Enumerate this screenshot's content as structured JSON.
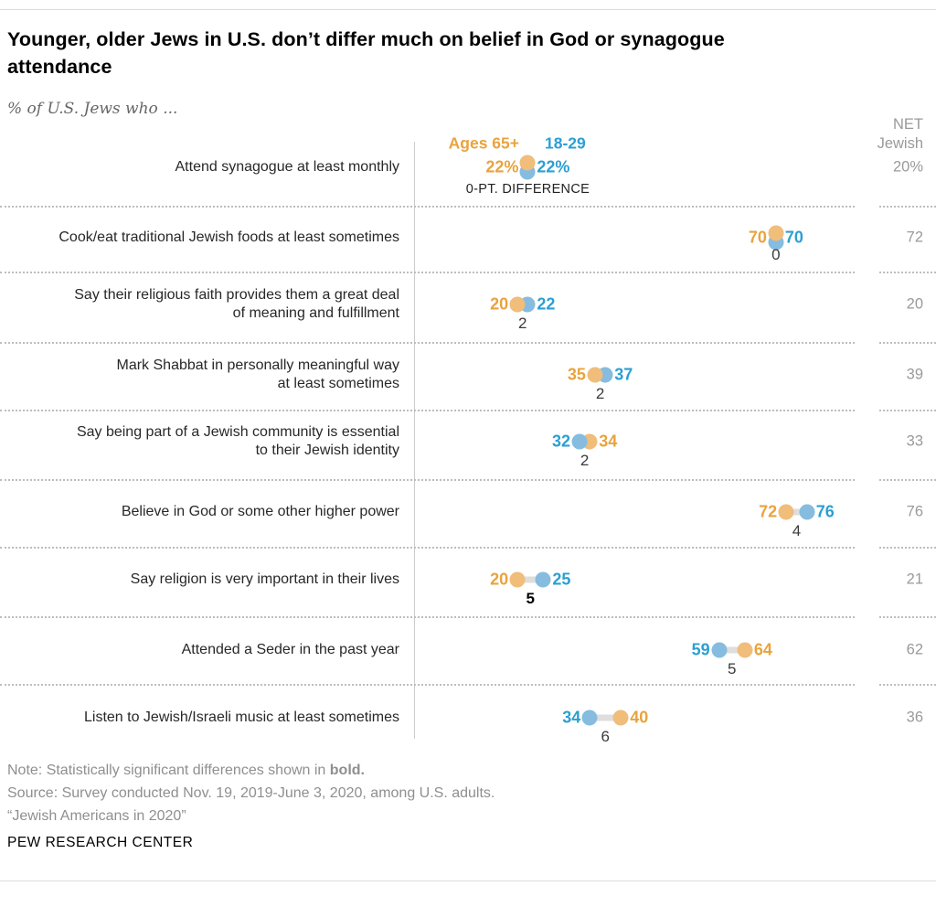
{
  "header": {
    "title": "Younger, older Jews in U.S. don’t differ much on belief in God or synagogue\nattendance",
    "subtitle": "% of U.S. Jews who ...",
    "net_column_label": "NET\nJewish"
  },
  "legend": {
    "older_label": "Ages 65+",
    "younger_label": "18-29"
  },
  "colors": {
    "older_text": "#E9A33D",
    "older_dot": "#F0BD7B",
    "younger_text": "#2B9FD3",
    "younger_dot": "#86BCDF",
    "connector": "#DEDEDE",
    "net_text": "#9A9A9A"
  },
  "chart_data": {
    "type": "scatter",
    "subtype": "dumbbell-dot-plot",
    "series_names": [
      "Ages 65+",
      "18-29"
    ],
    "x_axis": {
      "min": 0,
      "max": 100,
      "unit": "percent",
      "visible": false
    },
    "legend_position": "top of first row",
    "rows": [
      {
        "label": "Attend synagogue at least monthly",
        "ages_65_plus": 22,
        "ages_18_29": 22,
        "value_display_suffix": "%",
        "diff_label": "0-PT. DIFFERENCE",
        "diff_bold": false,
        "net": "20%",
        "arrangement": "stacked",
        "connector": false
      },
      {
        "label": "Cook/eat traditional Jewish foods at least sometimes",
        "ages_65_plus": 70,
        "ages_18_29": 70,
        "value_display_suffix": "",
        "diff_label": "0",
        "diff_bold": false,
        "net": "72",
        "arrangement": "stacked",
        "connector": false
      },
      {
        "label": "Say their religious faith provides them a great deal\nof meaning and fulfillment",
        "ages_65_plus": 20,
        "ages_18_29": 22,
        "value_display_suffix": "",
        "diff_label": "2",
        "diff_bold": false,
        "net": "20",
        "arrangement": "inline",
        "connector": false
      },
      {
        "label": "Mark Shabbat in personally meaningful way\nat least sometimes",
        "ages_65_plus": 35,
        "ages_18_29": 37,
        "value_display_suffix": "",
        "diff_label": "2",
        "diff_bold": false,
        "net": "39",
        "arrangement": "inline",
        "connector": false
      },
      {
        "label": "Say being part of a Jewish community is essential\nto their Jewish identity",
        "ages_65_plus": 34,
        "ages_18_29": 32,
        "value_display_suffix": "",
        "diff_label": "2",
        "diff_bold": false,
        "net": "33",
        "arrangement": "inline",
        "connector": false
      },
      {
        "label": "Believe in God or some other higher power",
        "ages_65_plus": 72,
        "ages_18_29": 76,
        "value_display_suffix": "",
        "diff_label": "4",
        "diff_bold": false,
        "net": "76",
        "arrangement": "inline",
        "connector": true
      },
      {
        "label": "Say religion is very important in their lives",
        "ages_65_plus": 20,
        "ages_18_29": 25,
        "value_display_suffix": "",
        "diff_label": "5",
        "diff_bold": true,
        "net": "21",
        "arrangement": "inline",
        "connector": true
      },
      {
        "label": "Attended a Seder in the past year",
        "ages_65_plus": 64,
        "ages_18_29": 59,
        "value_display_suffix": "",
        "diff_label": "5",
        "diff_bold": false,
        "net": "62",
        "arrangement": "inline",
        "connector": true
      },
      {
        "label": "Listen to Jewish/Israeli music at least sometimes",
        "ages_65_plus": 40,
        "ages_18_29": 34,
        "value_display_suffix": "",
        "diff_label": "6",
        "diff_bold": false,
        "net": "36",
        "arrangement": "inline",
        "connector": true
      }
    ]
  },
  "footer": {
    "note_prefix": "Note: Statistically significant differences shown in ",
    "note_bold": "bold.",
    "source": "Source: Survey conducted Nov. 19, 2019-June 3, 2020, among U.S. adults.",
    "report": "“Jewish Americans in 2020”",
    "brand": "PEW RESEARCH CENTER"
  }
}
